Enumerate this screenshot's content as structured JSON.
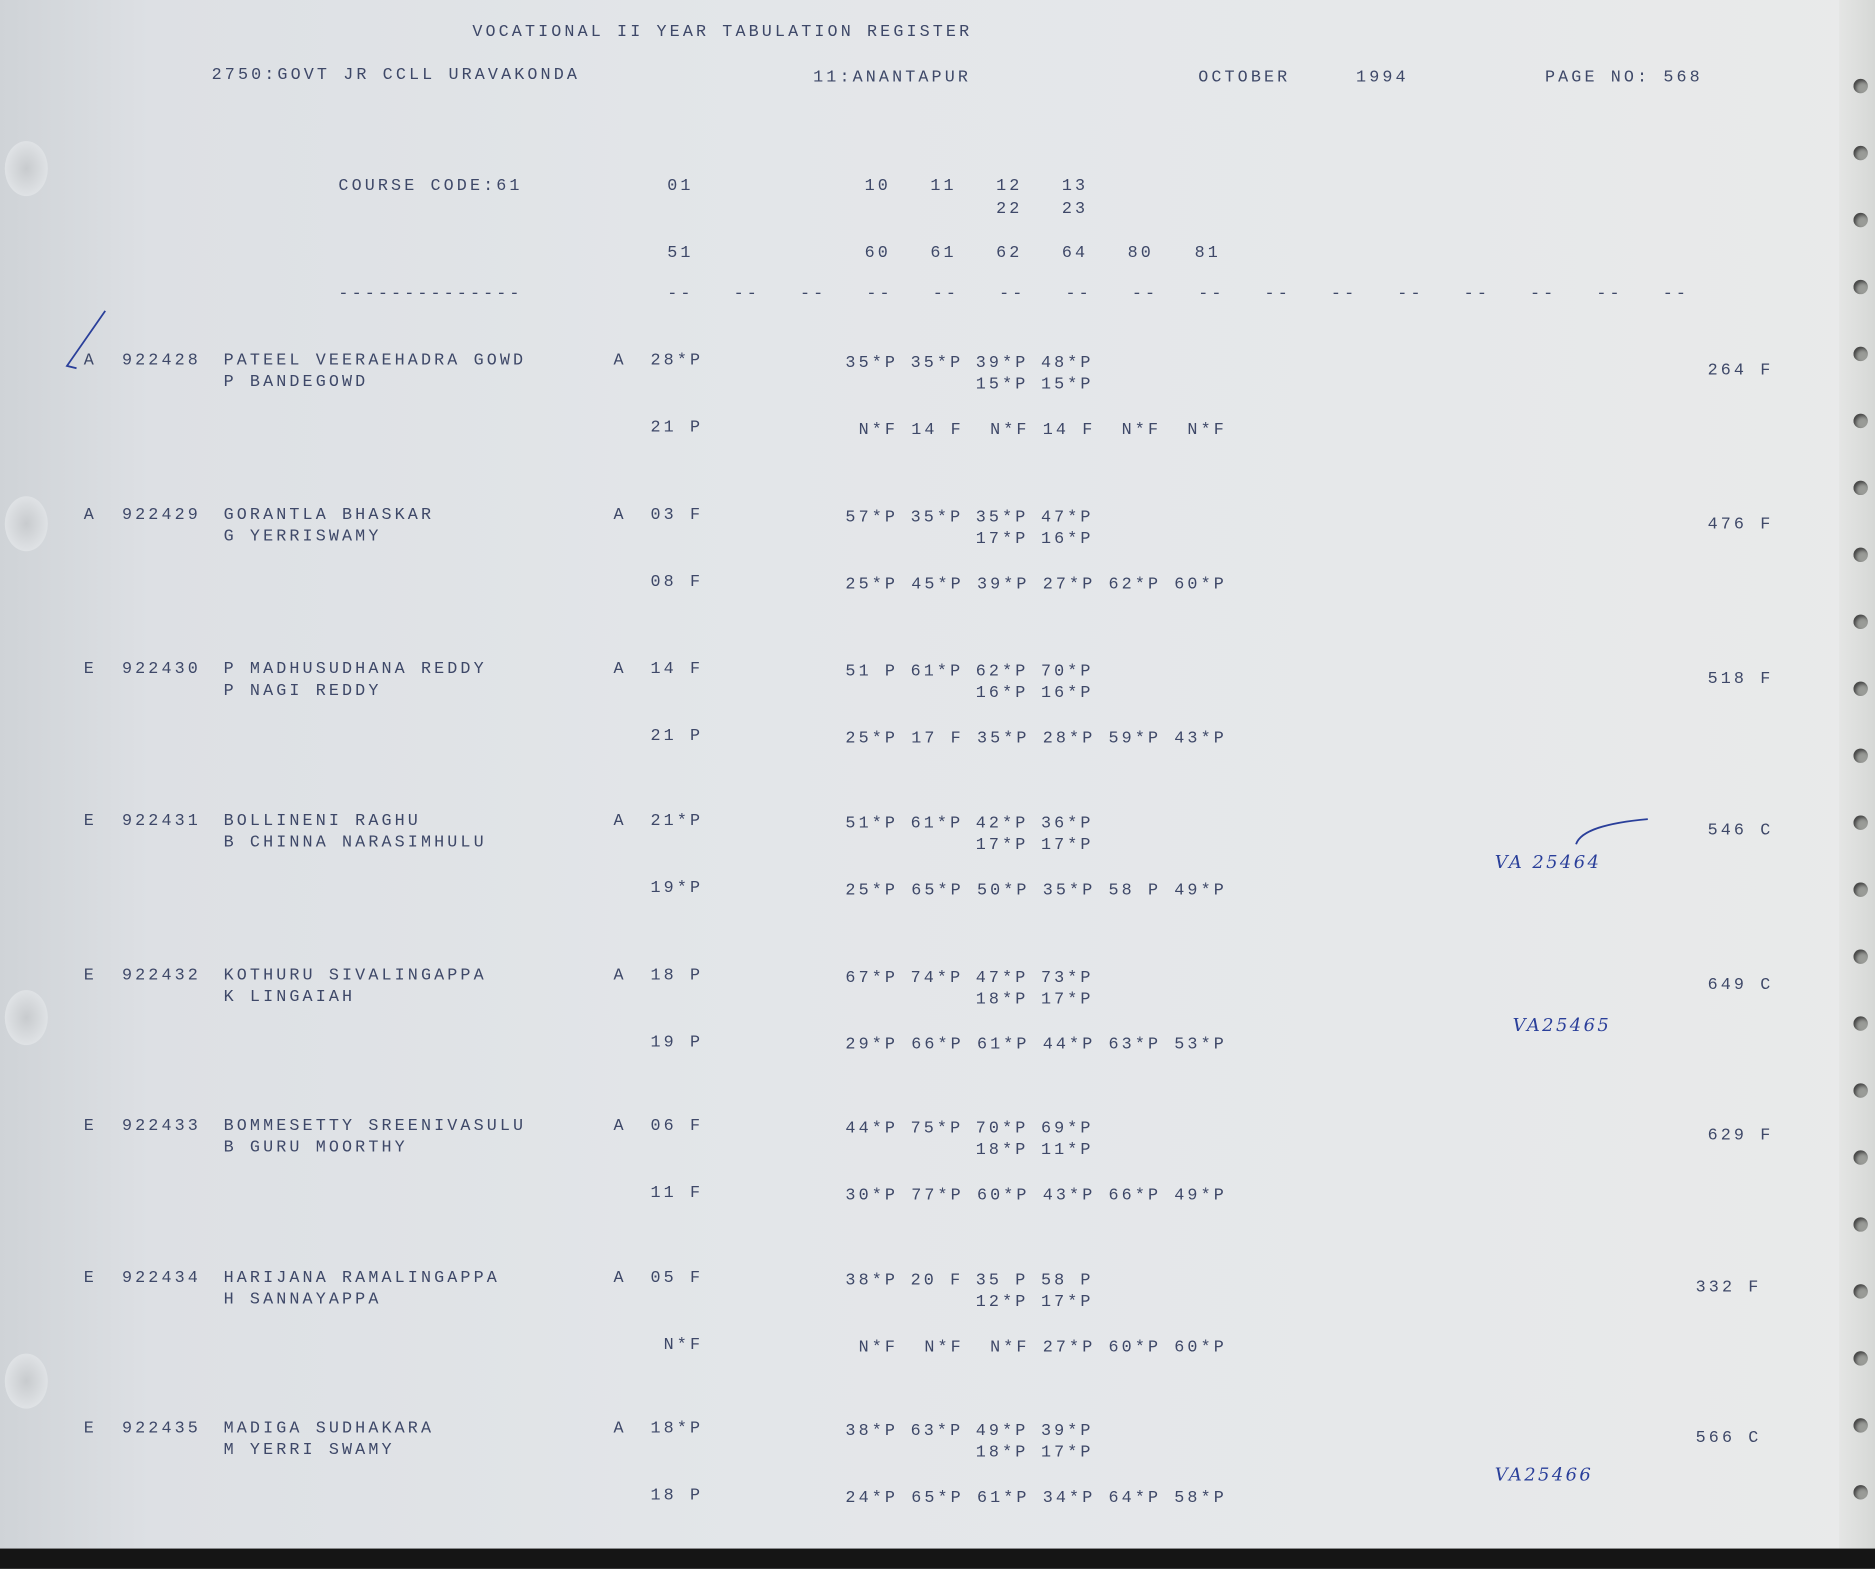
{
  "header": {
    "title": "VOCATIONAL II YEAR TABULATION REGISTER",
    "college": "2750:GOVT JR CCLL URAVAKONDA",
    "district": "11:ANANTAPUR",
    "month": "OCTOBER",
    "year": "1994",
    "page": "PAGE NO: 568"
  },
  "codes": {
    "course": "COURSE CODE:61",
    "row1": [
      "01",
      "10",
      "11",
      "12",
      "13"
    ],
    "row1b": [
      "22",
      "23"
    ],
    "row2": [
      "51",
      "60",
      "61",
      "62",
      "64",
      "80",
      "81"
    ],
    "underline": "--------------",
    "dash": "--"
  },
  "students": [
    {
      "type": "A",
      "roll": "922428",
      "name": "PATEEL VEERAEHADRA GOWD",
      "parent": "P BANDEGOWD",
      "medium": "A",
      "first": "28*P",
      "second": "21 P",
      "marks1": [
        "35*P",
        "35*P",
        "39*P",
        "48*P"
      ],
      "marks2": [
        "15*P",
        "15*P"
      ],
      "marks3": [
        "N*F",
        "14 F",
        "N*F",
        "14 F",
        "N*F",
        "N*F"
      ],
      "total": "264 F",
      "note": ""
    },
    {
      "type": "A",
      "roll": "922429",
      "name": "GORANTLA BHASKAR",
      "parent": "G YERRISWAMY",
      "medium": "A",
      "first": "03 F",
      "second": "08 F",
      "marks1": [
        "57*P",
        "35*P",
        "35*P",
        "47*P"
      ],
      "marks2": [
        "17*P",
        "16*P"
      ],
      "marks3": [
        "25*P",
        "45*P",
        "39*P",
        "27*P",
        "62*P",
        "60*P"
      ],
      "total": "476 F",
      "note": ""
    },
    {
      "type": "E",
      "roll": "922430",
      "name": "P MADHUSUDHANA REDDY",
      "parent": "P NAGI REDDY",
      "medium": "A",
      "first": "14 F",
      "second": "21 P",
      "marks1": [
        "51 P",
        "61*P",
        "62*P",
        "70*P"
      ],
      "marks2": [
        "16*P",
        "16*P"
      ],
      "marks3": [
        "25*P",
        "17 F",
        "35*P",
        "28*P",
        "59*P",
        "43*P"
      ],
      "total": "518 F",
      "note": ""
    },
    {
      "type": "E",
      "roll": "922431",
      "name": "BOLLINENI RAGHU",
      "parent": "B CHINNA NARASIMHULU",
      "medium": "A",
      "first": "21*P",
      "second": "19*P",
      "marks1": [
        "51*P",
        "61*P",
        "42*P",
        "36*P"
      ],
      "marks2": [
        "17*P",
        "17*P"
      ],
      "marks3": [
        "25*P",
        "65*P",
        "50*P",
        "35*P",
        "58 P",
        "49*P"
      ],
      "total": "546 C",
      "note": "VA 25464"
    },
    {
      "type": "E",
      "roll": "922432",
      "name": "KOTHURU SIVALINGAPPA",
      "parent": "K LINGAIAH",
      "medium": "A",
      "first": "18 P",
      "second": "19 P",
      "marks1": [
        "67*P",
        "74*P",
        "47*P",
        "73*P"
      ],
      "marks2": [
        "18*P",
        "17*P"
      ],
      "marks3": [
        "29*P",
        "66*P",
        "61*P",
        "44*P",
        "63*P",
        "53*P"
      ],
      "total": "649 C",
      "note": "VA25465"
    },
    {
      "type": "E",
      "roll": "922433",
      "name": "BOMMESETTY SREENIVASULU",
      "parent": "B GURU MOORTHY",
      "medium": "A",
      "first": "06 F",
      "second": "11 F",
      "marks1": [
        "44*P",
        "75*P",
        "70*P",
        "69*P"
      ],
      "marks2": [
        "18*P",
        "11*P"
      ],
      "marks3": [
        "30*P",
        "77*P",
        "60*P",
        "43*P",
        "66*P",
        "49*P"
      ],
      "total": "629 F",
      "note": ""
    },
    {
      "type": "E",
      "roll": "922434",
      "name": "HARIJANA RAMALINGAPPA",
      "parent": "H SANNAYAPPA",
      "medium": "A",
      "first": "05 F",
      "second": "N*F",
      "marks1": [
        "38*P",
        "20 F",
        "35 P",
        "58 P"
      ],
      "marks2": [
        "12*P",
        "17*P"
      ],
      "marks3": [
        "N*F",
        "N*F",
        "N*F",
        "27*P",
        "60*P",
        "60*P"
      ],
      "total": "332 F",
      "note": ""
    },
    {
      "type": "E",
      "roll": "922435",
      "name": "MADIGA SUDHAKARA",
      "parent": "M YERRI SWAMY",
      "medium": "A",
      "first": "18*P",
      "second": "18 P",
      "marks1": [
        "38*P",
        "63*P",
        "49*P",
        "39*P"
      ],
      "marks2": [
        "18*P",
        "17*P"
      ],
      "marks3": [
        "24*P",
        "65*P",
        "61*P",
        "34*P",
        "64*P",
        "58*P"
      ],
      "total": "566 C",
      "note": "VA25466"
    }
  ],
  "colors": {
    "ink": "#3e4868",
    "pen": "#2a3f9a",
    "paper": "#e3e6e9"
  }
}
